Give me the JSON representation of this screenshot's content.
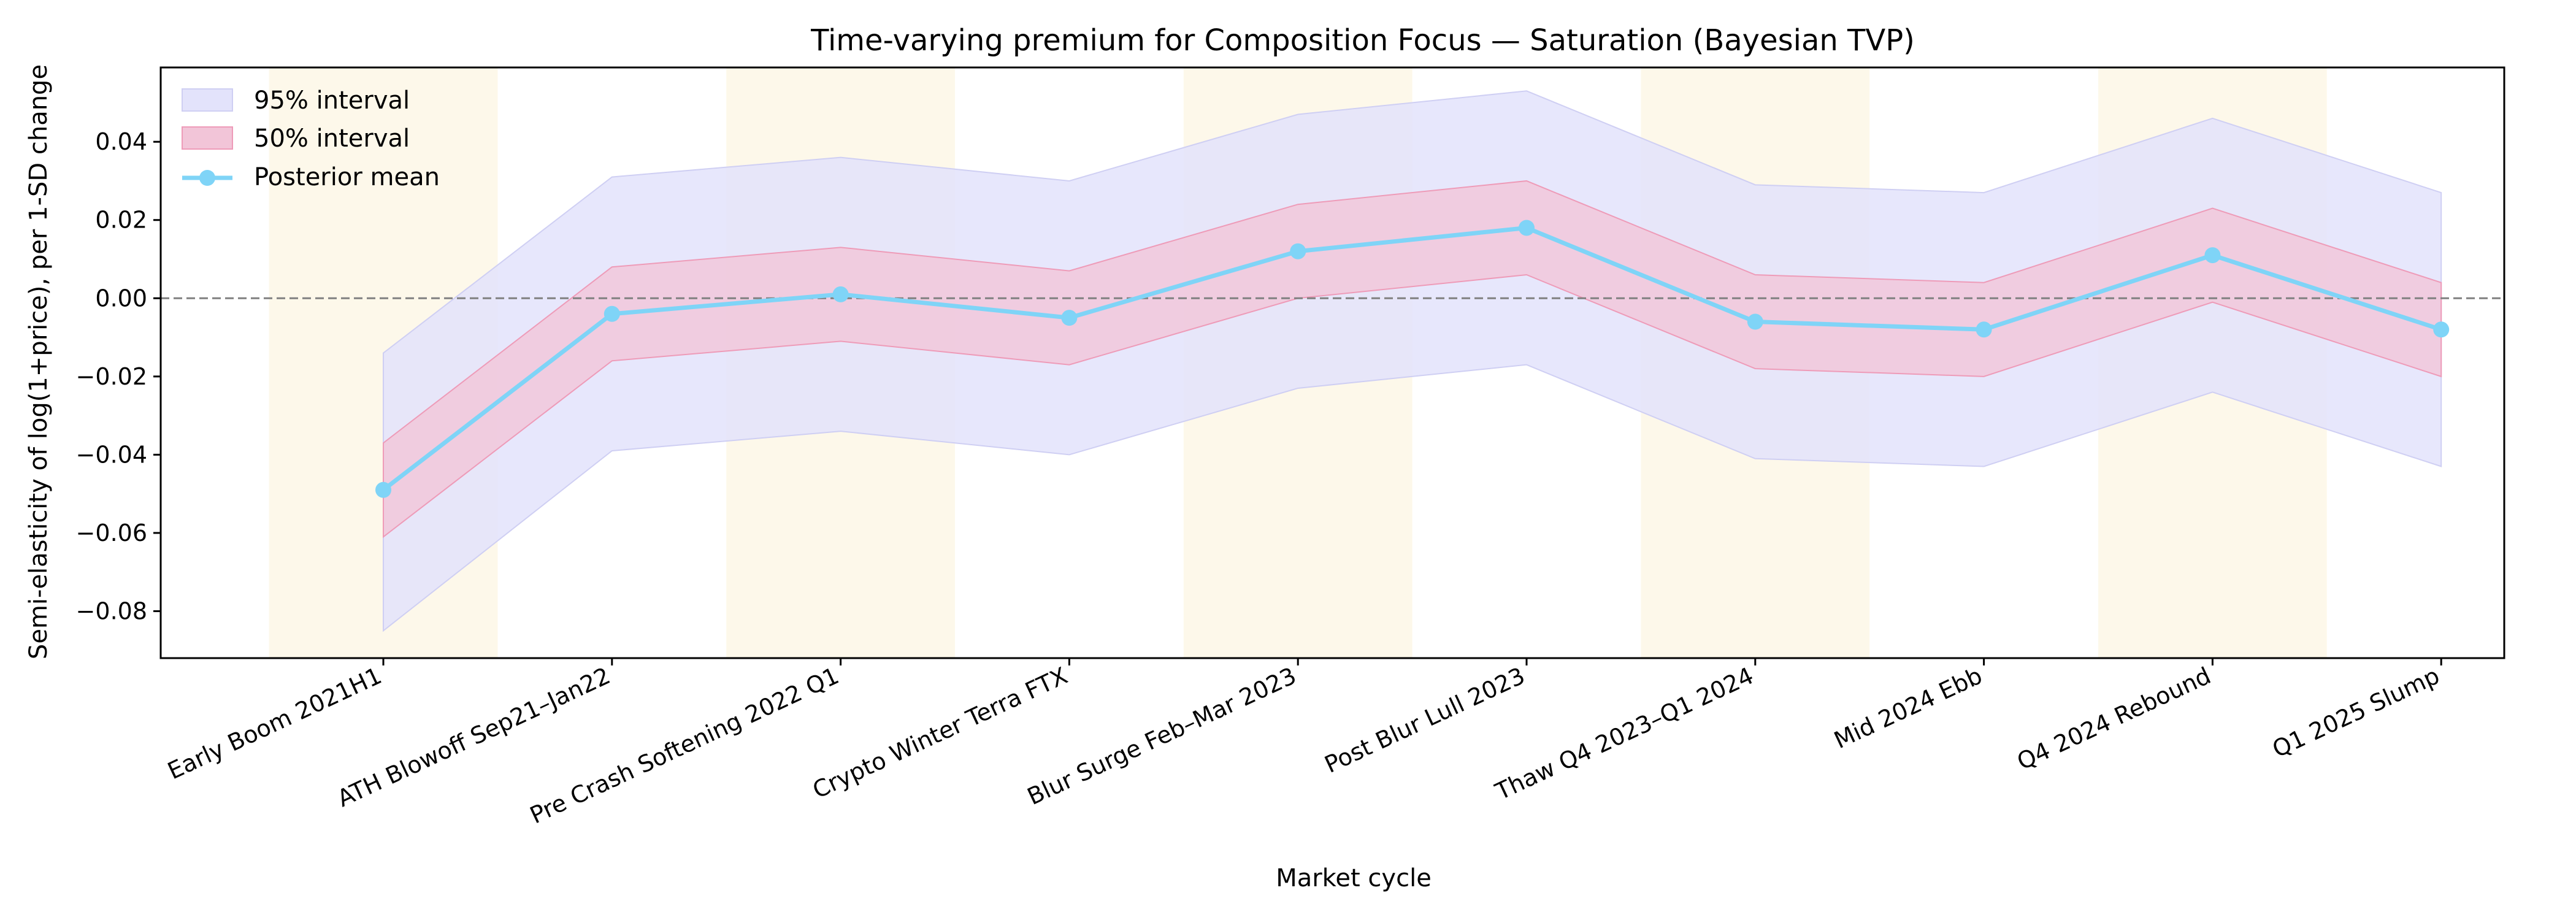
{
  "chart_data": {
    "type": "line",
    "title": "Time-varying premium for Composition Focus — Saturation (Bayesian TVP)",
    "xlabel": "Market cycle",
    "ylabel": "Semi-elasticity of log(1+price), per 1-SD change",
    "ylim": [
      -0.092,
      0.059
    ],
    "yticks": [
      -0.08,
      -0.06,
      -0.04,
      -0.02,
      0.0,
      0.02,
      0.04
    ],
    "ytick_labels": [
      "−0.08",
      "−0.06",
      "−0.04",
      "−0.02",
      "0.00",
      "0.02",
      "0.04"
    ],
    "categories": [
      "Early Boom 2021H1",
      "ATH Blowoff Sep21–Jan22",
      "Pre Crash Softening 2022 Q1",
      "Crypto Winter Terra FTX",
      "Blur Surge Feb–Mar 2023",
      "Post Blur Lull 2023",
      "Thaw Q4 2023–Q1 2024",
      "Mid 2024 Ebb",
      "Q4 2024 Rebound",
      "Q1 2025 Slump"
    ],
    "shaded_categories": [
      0,
      2,
      4,
      6,
      8
    ],
    "reference_line": 0.0,
    "legend_position": "top-left",
    "series": [
      {
        "name": "95% interval",
        "kind": "band",
        "lower": [
          -0.085,
          -0.039,
          -0.034,
          -0.04,
          -0.023,
          -0.017,
          -0.041,
          -0.043,
          -0.024,
          -0.043
        ],
        "upper": [
          -0.014,
          0.031,
          0.036,
          0.03,
          0.047,
          0.053,
          0.029,
          0.027,
          0.046,
          0.027
        ]
      },
      {
        "name": "50% interval",
        "kind": "band",
        "lower": [
          -0.061,
          -0.016,
          -0.011,
          -0.017,
          -0.0,
          0.006,
          -0.018,
          -0.02,
          -0.001,
          -0.02
        ],
        "upper": [
          -0.037,
          0.008,
          0.013,
          0.007,
          0.024,
          0.03,
          0.006,
          0.004,
          0.023,
          0.004
        ]
      },
      {
        "name": "Posterior mean",
        "kind": "line",
        "values": [
          -0.049,
          -0.004,
          0.001,
          -0.005,
          0.012,
          0.018,
          -0.006,
          -0.008,
          0.011,
          -0.008
        ]
      }
    ],
    "colors": {
      "band95": "#e3e3fb",
      "band95_edge": "#cfcff3",
      "band50": "#f2c5d8",
      "band50_edge": "#ee9bb8",
      "mean": "#7fd4f7",
      "shade": "#fdf8ea",
      "zero_line": "#808080"
    }
  }
}
